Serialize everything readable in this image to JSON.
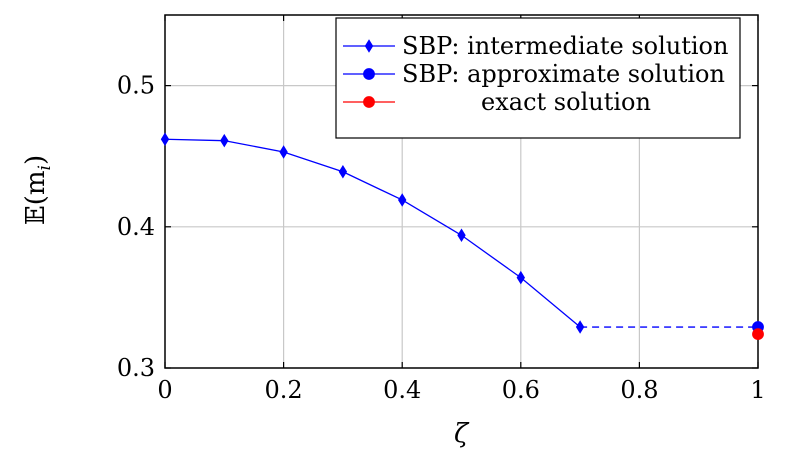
{
  "chart_data": {
    "type": "line",
    "xlabel": "ζ",
    "ylabel": "𝔼(m",
    "ylabel_sub": "i",
    "ylabel_close": ")",
    "xlim": [
      0,
      1
    ],
    "ylim": [
      0.3,
      0.55
    ],
    "xticks": [
      0,
      0.2,
      0.4,
      0.6,
      0.8,
      1
    ],
    "xtick_labels": [
      "0",
      "0.2",
      "0.4",
      "0.6",
      "0.8",
      "1"
    ],
    "yticks": [
      0.3,
      0.4,
      0.5
    ],
    "ytick_labels": [
      "0.3",
      "0.4",
      "0.5"
    ],
    "grid": true,
    "legend_position": "top-right",
    "series": [
      {
        "name": "SBP: intermediate solution",
        "color": "#0000ff",
        "marker": "diamond",
        "x": [
          0,
          0.1,
          0.2,
          0.3,
          0.4,
          0.5,
          0.6,
          0.7
        ],
        "y": [
          0.462,
          0.461,
          0.453,
          0.439,
          0.419,
          0.394,
          0.364,
          0.329
        ]
      },
      {
        "name": "SBP: approximate solution",
        "color": "#0000ff",
        "marker": "circle",
        "x": [
          1
        ],
        "y": [
          0.329
        ]
      },
      {
        "name": "exact solution",
        "color": "#ff0000",
        "marker": "circle",
        "x": [
          1
        ],
        "y": [
          0.324
        ]
      }
    ],
    "connector": {
      "style": "dashed",
      "color": "#0000ff",
      "from": [
        0.7,
        0.329
      ],
      "to": [
        1,
        0.329
      ]
    }
  }
}
